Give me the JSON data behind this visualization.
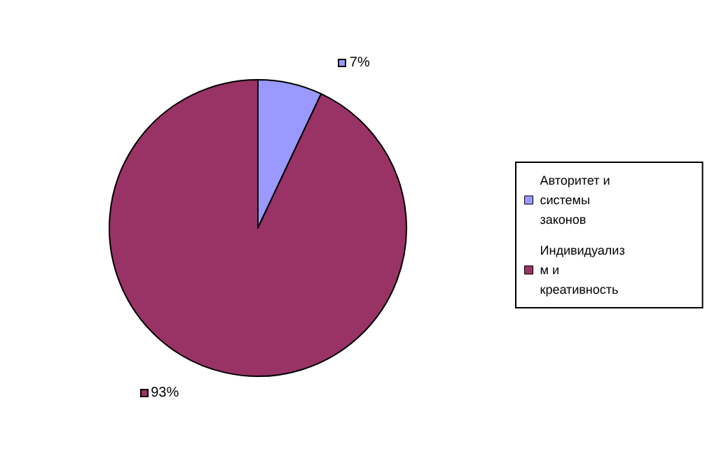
{
  "chart_data": {
    "type": "pie",
    "categories": [
      "Авторитет и системы законов",
      "Индивидуализм и креативность"
    ],
    "values": [
      7,
      93
    ],
    "colors": [
      "#9999ff",
      "#993366"
    ],
    "value_labels": [
      "7%",
      "93%"
    ],
    "legend": "right"
  }
}
